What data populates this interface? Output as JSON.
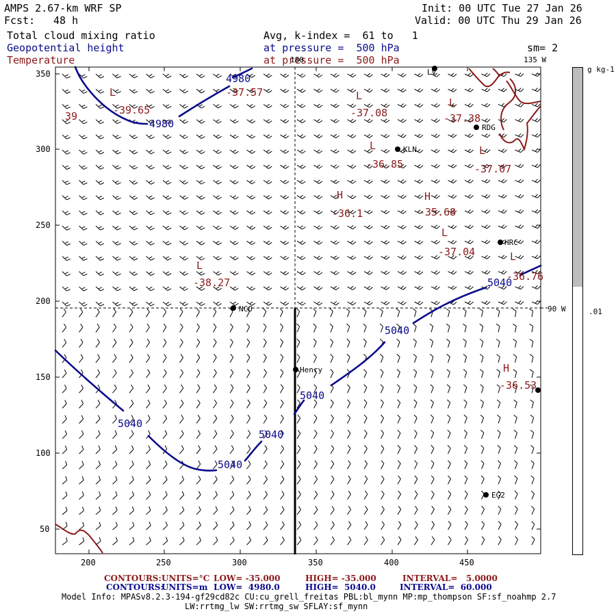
{
  "header": {
    "model": "AMPS 2.67-km WRF SP",
    "fcst_label": "Fcst:",
    "fcst_value": "48 h",
    "init": "Init: 00 UTC Tue 27 Jan 26",
    "valid": "Valid: 00 UTC Thu 29 Jan 26",
    "field1": "Total cloud mixing ratio",
    "field2": "Geopotential height",
    "field3": "Temperature",
    "avg": "Avg, k-index =  61 to   1",
    "press1": "at pressure =  500 hPa",
    "press2": "at pressure =  500 hPa",
    "sm": "sm= 2"
  },
  "map": {
    "x_ticks": [
      "200",
      "250",
      "300",
      "350",
      "400",
      "450"
    ],
    "y_ticks": [
      "350",
      "300",
      "250",
      "200",
      "150",
      "100",
      "50"
    ],
    "lon_180": "180",
    "lon_135": "135 W",
    "lon_90": "90 W",
    "stations": [
      {
        "name": "LV"
      },
      {
        "name": "RDG"
      },
      {
        "name": "KLN"
      },
      {
        "name": "HRC"
      },
      {
        "name": "NCO"
      },
      {
        "name": "Henry"
      },
      {
        "name": "EG2"
      },
      {
        "name": ""
      }
    ],
    "height_labels": [
      "4980",
      "4980",
      "5040",
      "5040",
      "5040",
      "5040",
      "5040",
      "5040"
    ],
    "temp_labels": [
      {
        "sym": "L",
        "val": "-39.65"
      },
      {
        "sym": "",
        "val": "-37.57"
      },
      {
        "sym": "",
        "val": "39"
      },
      {
        "sym": "L",
        "val": "-37.08"
      },
      {
        "sym": "L",
        "val": "-37.38"
      },
      {
        "sym": "L",
        "val": "-36.85"
      },
      {
        "sym": "L",
        "val": "-37.07"
      },
      {
        "sym": "H",
        "val": "-36.1"
      },
      {
        "sym": "H",
        "val": "-35.68"
      },
      {
        "sym": "L",
        "val": "-37.04"
      },
      {
        "sym": "L",
        "val": "-38.27"
      },
      {
        "sym": "L",
        "val": "-36.76"
      },
      {
        "sym": "H",
        "val": "-36.53"
      }
    ]
  },
  "colorbar": {
    "unit": "g kg-1",
    "value": ".01",
    "fill_fraction": 0.45
  },
  "footer": {
    "line1_label": "CONTOURS:",
    "line1_units": "UNITS=°C",
    "line1_low": "LOW= -35.000",
    "line1_high": "HIGH= -35.000",
    "line1_interval": "INTERVAL=   5.0000",
    "line2_label": "CONTOURS:",
    "line2_units": "UNITS=m",
    "line2_low": "LOW=  4980.0",
    "line2_high": "HIGH=  5040.0",
    "line2_interval": "INTERVAL=  60.000",
    "info1": "Model Info: MPASv8.2.3-194-gf29cd82c CU:cu_grell_freitas PBL:bl_mynn MP:mp_thompson SF:sf_noahmp 2.7",
    "info2": "LW:rrtmg_lw SW:rrtmg_sw SFLAY:sf_mynn"
  },
  "colors": {
    "height": "#0a0a8c",
    "temperature": "#8b1a1a",
    "colorbar_fill": "#bdbdbd"
  }
}
